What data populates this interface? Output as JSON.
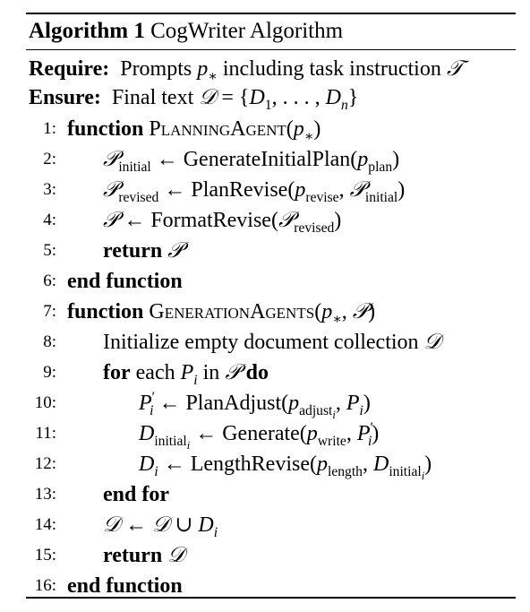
{
  "algorithm": {
    "number_label": "Algorithm 1",
    "title": "CogWriter Algorithm",
    "require_label": "Require:",
    "require_text": "Prompts p∗ including task instruction 𝒯",
    "ensure_label": "Ensure:",
    "ensure_text": "Final text 𝒟 = {D1, . . . , Dn}",
    "lines": [
      {
        "n": "1:",
        "kw": "function",
        "name": "PlanningAgent",
        "args": "(p∗)"
      },
      {
        "n": "2:",
        "text": "𝒫initial ← GenerateInitialPlan(pplan)"
      },
      {
        "n": "3:",
        "text": "𝒫revised ← PlanRevise(previse, 𝒫initial)"
      },
      {
        "n": "4:",
        "text": "𝒫 ← FormatRevise(𝒫revised)"
      },
      {
        "n": "5:",
        "kw": "return",
        "text": "𝒫"
      },
      {
        "n": "6:",
        "kw": "end function"
      },
      {
        "n": "7:",
        "kw": "function",
        "name": "GenerationAgents",
        "args": "(p∗, 𝒫)"
      },
      {
        "n": "8:",
        "text": "Initialize empty document collection 𝒟"
      },
      {
        "n": "9:",
        "kw": "for",
        "text": "each Pi in 𝒫",
        "kw2": "do"
      },
      {
        "n": "10:",
        "text": "P′i ← PlanAdjust(padjusti, Pi)"
      },
      {
        "n": "11:",
        "text": "Dinitiali ← Generate(pwrite, P′i)"
      },
      {
        "n": "12:",
        "text": "Di ← LengthRevise(plength, Dinitiali)"
      },
      {
        "n": "13:",
        "kw": "end for"
      },
      {
        "n": "14:",
        "text": "𝒟 ← 𝒟 ∪ Di"
      },
      {
        "n": "15:",
        "kw": "return",
        "text": "𝒟"
      },
      {
        "n": "16:",
        "kw": "end function"
      }
    ]
  }
}
